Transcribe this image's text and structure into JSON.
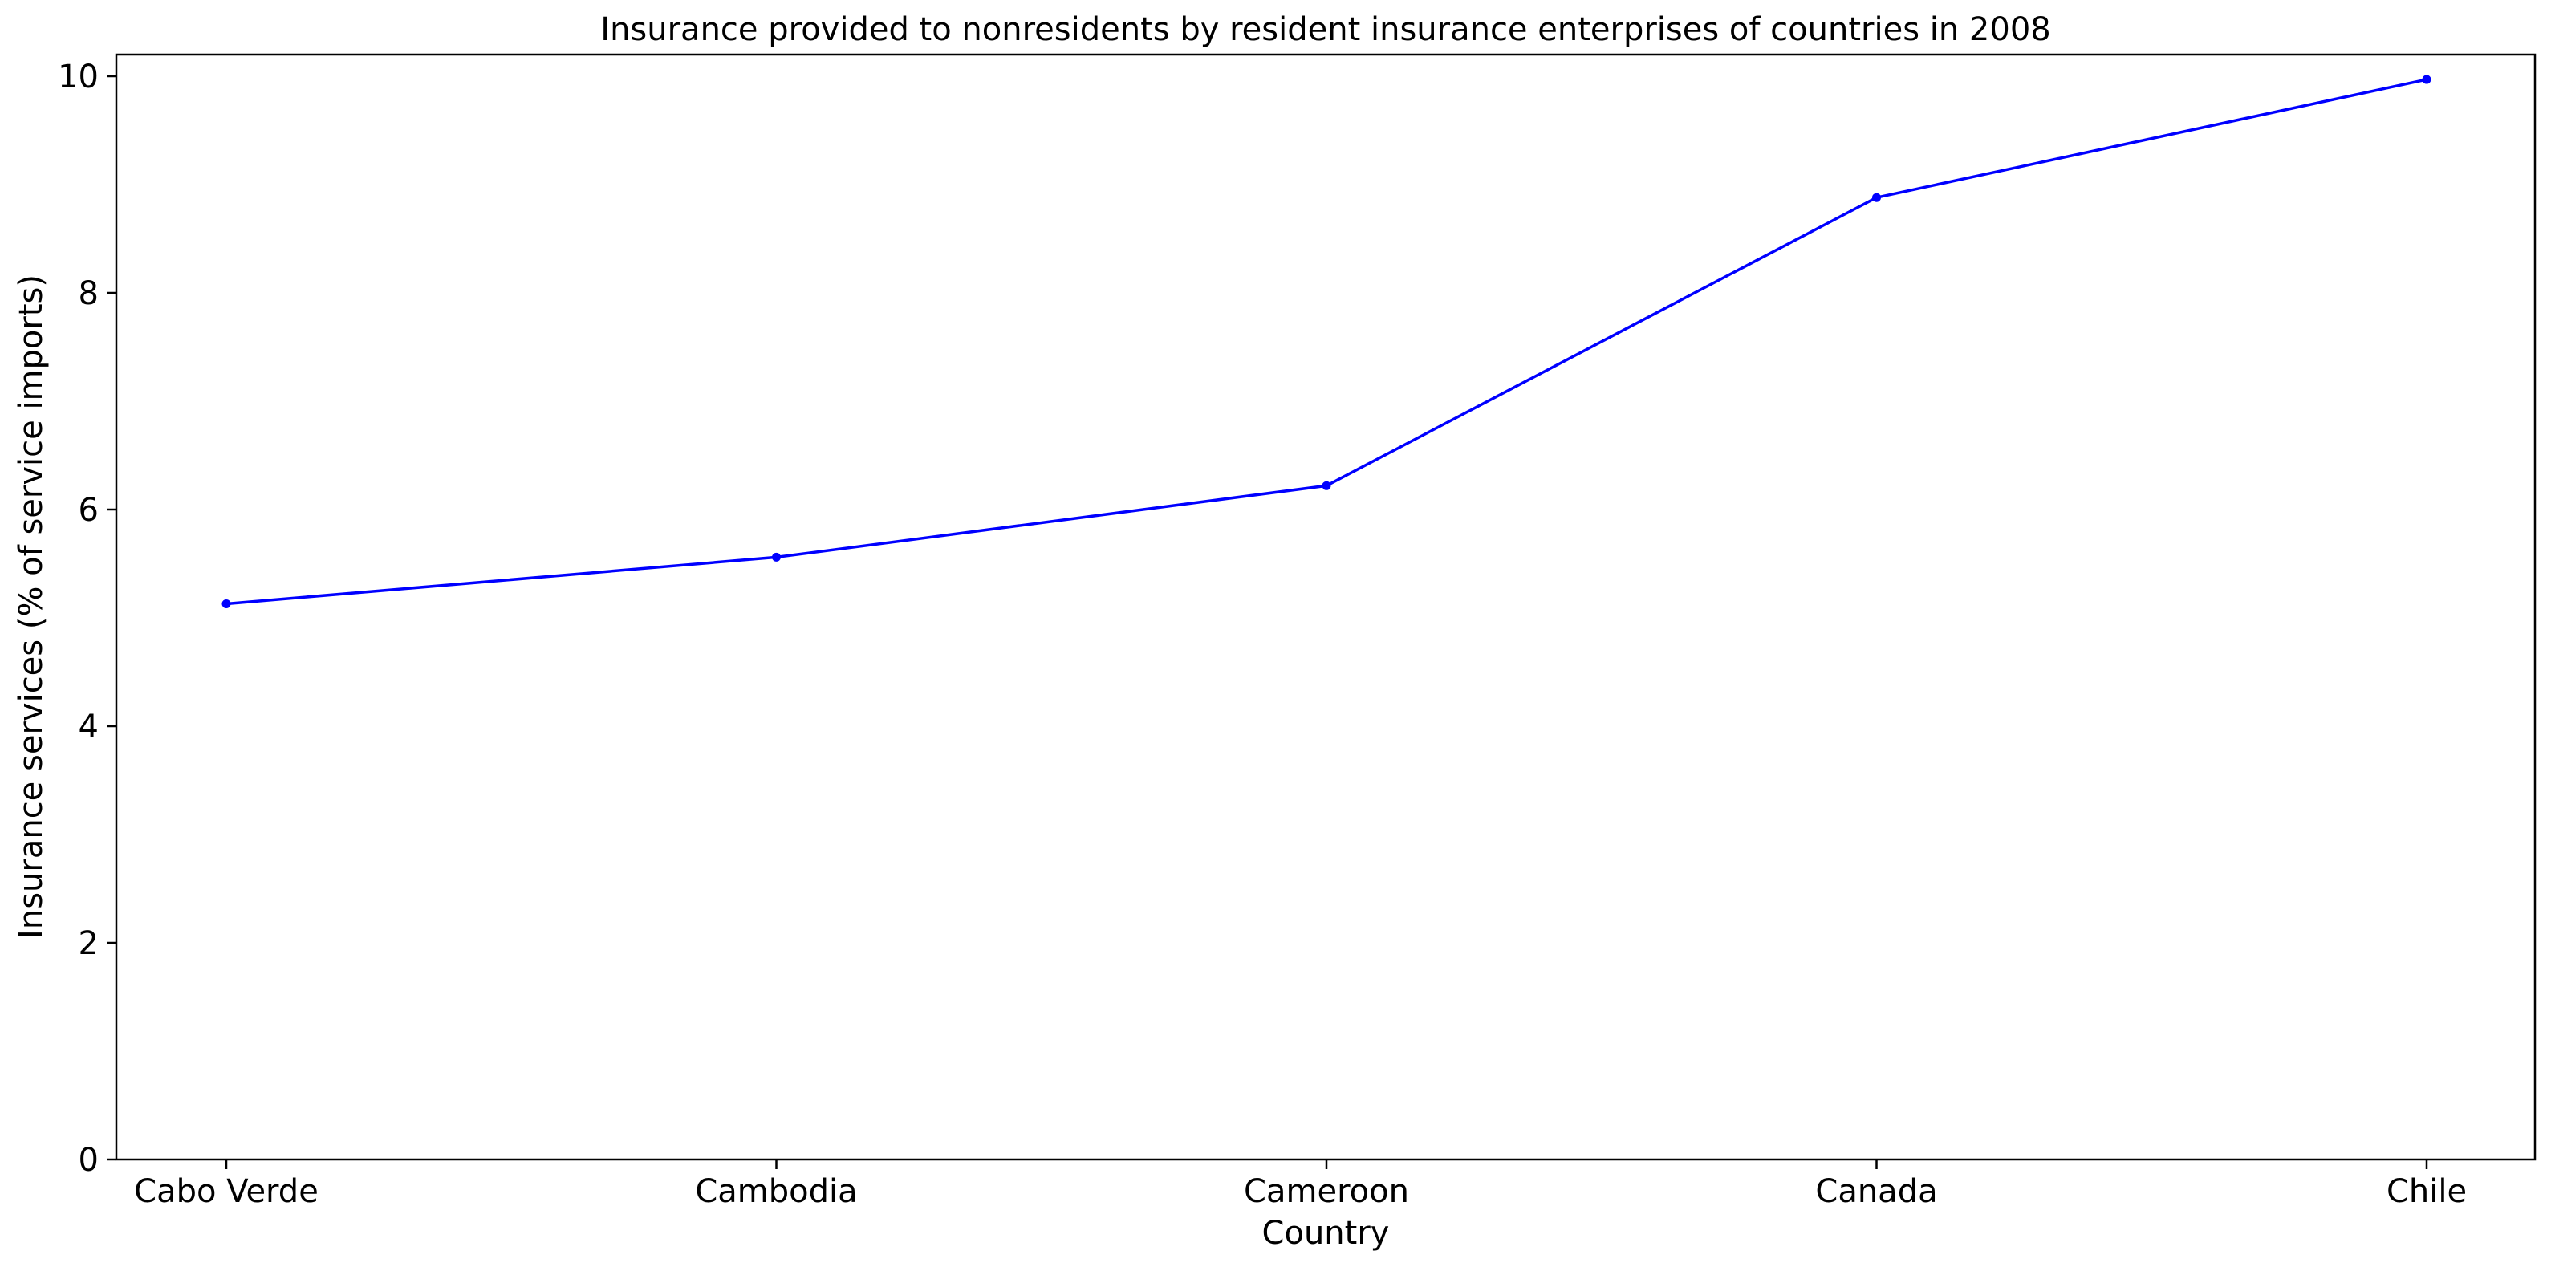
{
  "chart_data": {
    "type": "line",
    "title": "Insurance provided to nonresidents by resident insurance enterprises of countries in 2008",
    "xlabel": "Country",
    "ylabel": "Insurance services (% of service imports)",
    "categories": [
      "Cabo Verde",
      "Cambodia",
      "Cameroon",
      "Canada",
      "Chile"
    ],
    "series": [
      {
        "values": [
          5.13,
          5.56,
          6.22,
          8.88,
          9.97
        ],
        "color": "#0000ff",
        "marker": "dot"
      }
    ],
    "ylim": [
      0,
      10.2
    ],
    "yticks": [
      0,
      2,
      4,
      6,
      8,
      10
    ],
    "grid": false,
    "legend": "none"
  }
}
